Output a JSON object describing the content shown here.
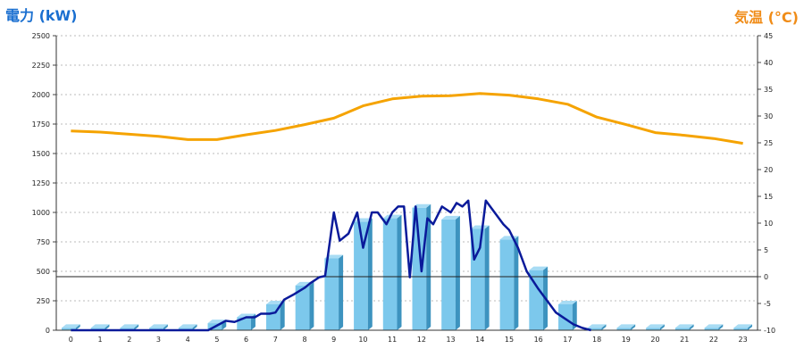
{
  "chart_data": {
    "type": "bar+line",
    "left_axis_title": "電力 (kW)",
    "right_axis_title": "気温 (°C)",
    "x": [
      0,
      1,
      2,
      3,
      4,
      5,
      6,
      7,
      8,
      9,
      10,
      11,
      12,
      13,
      14,
      15,
      16,
      17,
      18,
      19,
      20,
      21,
      22,
      23
    ],
    "left_ylim": [
      0,
      2500
    ],
    "left_yticks": [
      0,
      250,
      500,
      750,
      1000,
      1250,
      1500,
      1750,
      2000,
      2250,
      2500
    ],
    "right_ylim": [
      -10,
      45
    ],
    "right_yticks": [
      -10,
      -5,
      0,
      5,
      10,
      15,
      20,
      25,
      30,
      35,
      40,
      45
    ],
    "reference_line_temp": 0,
    "series": [
      {
        "kind": "bar",
        "axis": "left",
        "color": "#7cc8ec",
        "values": [
          20,
          20,
          20,
          20,
          20,
          60,
          110,
          220,
          380,
          610,
          920,
          950,
          1040,
          940,
          860,
          770,
          510,
          220,
          20,
          20,
          20,
          20,
          20,
          20
        ]
      },
      {
        "kind": "line",
        "axis": "left",
        "color": "#0a1a9a",
        "x": [
          0,
          1,
          2,
          3,
          4,
          4.7,
          5,
          5.3,
          5.6,
          6,
          6.3,
          6.5,
          6.8,
          7,
          7.3,
          7.6,
          8,
          8.2,
          8.5,
          8.7,
          9,
          9.2,
          9.5,
          9.8,
          10,
          10.3,
          10.5,
          10.8,
          11,
          11.2,
          11.4,
          11.6,
          11.8,
          12,
          12.2,
          12.4,
          12.7,
          13,
          13.2,
          13.4,
          13.6,
          13.8,
          14,
          14.2,
          14.5,
          14.8,
          15,
          15.3,
          15.6,
          16,
          16.3,
          16.6,
          16.9,
          17.2,
          17.5,
          17.8
        ],
        "values": [
          0,
          0,
          0,
          0,
          0,
          0,
          40,
          80,
          70,
          110,
          110,
          140,
          140,
          150,
          260,
          300,
          360,
          400,
          450,
          460,
          1000,
          760,
          820,
          1000,
          700,
          1000,
          1000,
          900,
          1000,
          1050,
          1050,
          450,
          1050,
          500,
          950,
          900,
          1050,
          1000,
          1080,
          1050,
          1100,
          600,
          700,
          1100,
          1000,
          900,
          850,
          700,
          500,
          350,
          250,
          150,
          100,
          50,
          20,
          0
        ]
      },
      {
        "kind": "line",
        "axis": "right",
        "color": "#f5a300",
        "values": [
          27.2,
          27.0,
          26.6,
          26.2,
          25.6,
          25.6,
          26.5,
          27.3,
          28.4,
          29.6,
          31.9,
          33.2,
          33.7,
          33.8,
          34.2,
          33.9,
          33.2,
          32.2,
          29.8,
          28.4,
          26.9,
          26.4,
          25.8,
          24.9
        ]
      }
    ]
  }
}
